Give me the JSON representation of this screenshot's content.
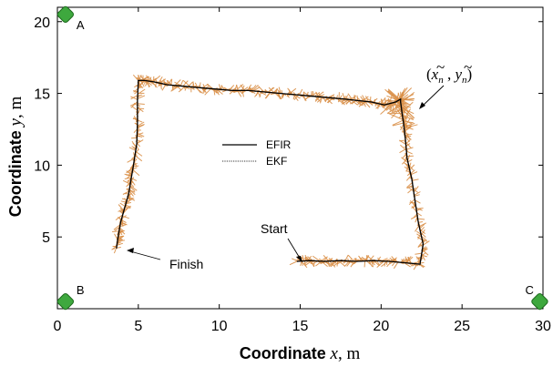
{
  "chart_data": {
    "type": "line",
    "xlabel": {
      "bold": "Coordinate",
      "var": "x",
      "unit": ", m"
    },
    "ylabel": {
      "bold": "Coordinate",
      "var": "y",
      "unit": ", m"
    },
    "xlim": [
      0,
      30
    ],
    "ylim": [
      0,
      21
    ],
    "x_ticks": [
      0,
      5,
      10,
      15,
      20,
      25,
      30
    ],
    "y_ticks": [
      5,
      10,
      15,
      20
    ],
    "grid": false,
    "legend_placement": "center",
    "colors": {
      "measurements": "#D98F47",
      "efir": "#000000",
      "ekf": "#555555",
      "anchor": "#3EA83E"
    },
    "anchors": [
      {
        "label": "A",
        "x": 0.5,
        "y": 20.5
      },
      {
        "label": "B",
        "x": 0.5,
        "y": 0.5
      },
      {
        "label": "C",
        "x": 29.8,
        "y": 0.5
      }
    ],
    "series": [
      {
        "name": "EFIR",
        "style": "solid",
        "x": [
          14.8,
          15.6,
          16.5,
          17.5,
          18.5,
          19.5,
          20.5,
          21.5,
          22.4,
          22.6,
          22.3,
          22.1,
          21.9,
          21.6,
          21.5,
          21.4,
          21.3,
          21.2,
          21.2,
          20.9,
          20.2,
          19.4,
          18.6,
          17.8,
          16.8,
          15.8,
          14.8,
          13.8,
          12.8,
          11.8,
          10.8,
          9.8,
          8.8,
          7.8,
          6.8,
          6.0,
          5.4,
          5.0,
          4.95,
          4.95,
          4.9,
          4.7,
          4.55,
          4.4,
          4.15,
          3.9,
          3.75,
          3.65
        ],
        "y": [
          3.3,
          3.35,
          3.3,
          3.35,
          3.3,
          3.35,
          3.3,
          3.2,
          3.1,
          4.5,
          6.0,
          7.5,
          9.0,
          10.5,
          11.8,
          12.8,
          13.6,
          14.4,
          14.6,
          14.4,
          14.2,
          14.4,
          14.5,
          14.6,
          14.7,
          14.8,
          14.9,
          15.0,
          15.1,
          15.2,
          15.2,
          15.3,
          15.4,
          15.5,
          15.6,
          15.8,
          15.9,
          15.9,
          14.5,
          13.0,
          11.5,
          10.0,
          9.0,
          8.0,
          7.0,
          6.0,
          5.0,
          4.2
        ]
      },
      {
        "name": "EKF",
        "style": "dotted",
        "x": [
          14.8,
          15.6,
          16.5,
          17.5,
          18.5,
          19.5,
          20.5,
          21.5,
          22.4,
          22.6,
          22.3,
          22.1,
          21.9,
          21.6,
          21.5,
          21.4,
          21.3,
          21.2,
          21.2,
          20.9,
          20.2,
          19.4,
          18.6,
          17.8,
          16.8,
          15.8,
          14.8,
          13.8,
          12.8,
          11.8,
          10.8,
          9.8,
          8.8,
          7.8,
          6.8,
          6.0,
          5.4,
          5.0,
          4.95,
          4.95,
          4.9,
          4.7,
          4.55,
          4.4,
          4.15,
          3.9,
          3.75,
          3.65
        ],
        "y": [
          3.3,
          3.35,
          3.3,
          3.35,
          3.3,
          3.35,
          3.3,
          3.2,
          3.1,
          4.5,
          6.0,
          7.5,
          9.0,
          10.5,
          11.8,
          12.8,
          13.6,
          14.4,
          14.6,
          14.4,
          14.2,
          14.4,
          14.5,
          14.6,
          14.7,
          14.8,
          14.9,
          15.0,
          15.1,
          15.2,
          15.2,
          15.3,
          15.4,
          15.5,
          15.6,
          15.8,
          15.9,
          15.9,
          14.5,
          13.0,
          11.5,
          10.0,
          9.0,
          8.0,
          7.0,
          6.0,
          5.0,
          4.2
        ]
      }
    ],
    "annotations": [
      {
        "text": "Start",
        "x": 14.8,
        "y": 3.3
      },
      {
        "text": "Finish",
        "x": 3.8,
        "y": 4.2
      }
    ],
    "math_label": {
      "open": "(",
      "sym_x": "x",
      "sub_x": "n",
      "sep": " , ",
      "sym_y": "y",
      "sub_y": "n",
      "close": ")",
      "tilde": "~"
    }
  }
}
